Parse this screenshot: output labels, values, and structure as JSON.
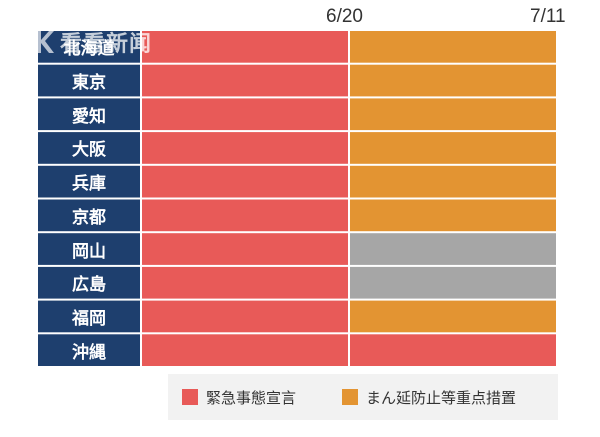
{
  "chart_data": {
    "type": "timeline",
    "dates": [
      "6/20",
      "7/11"
    ],
    "categories": [
      "北海道",
      "東京",
      "愛知",
      "大阪",
      "兵庫",
      "京都",
      "岡山",
      "広島",
      "福岡",
      "沖縄"
    ],
    "periods": [
      {
        "to": "6/20",
        "values": [
          "緊急事態宣言",
          "緊急事態宣言",
          "緊急事態宣言",
          "緊急事態宣言",
          "緊急事態宣言",
          "緊急事態宣言",
          "緊急事態宣言",
          "緊急事態宣言",
          "緊急事態宣言",
          "緊急事態宣言"
        ]
      },
      {
        "from": "6/20",
        "to": "7/11",
        "values": [
          "まん延防止等重点措置",
          "まん延防止等重点措置",
          "まん延防止等重点措置",
          "まん延防止等重点措置",
          "まん延防止等重点措置",
          "まん延防止等重点措置",
          "none",
          "none",
          "まん延防止等重点措置",
          "緊急事態宣言"
        ]
      }
    ],
    "legend": [
      {
        "label": "緊急事態宣言",
        "color": "#e85a58"
      },
      {
        "label": "まん延防止等重点措置",
        "color": "#e39432"
      }
    ],
    "colors": {
      "none": "#a6a6a6",
      "label_bg": "#1e3f6e"
    }
  },
  "watermark": {
    "text": "看看新闻",
    "logo_icon": "knews-logo-icon"
  }
}
